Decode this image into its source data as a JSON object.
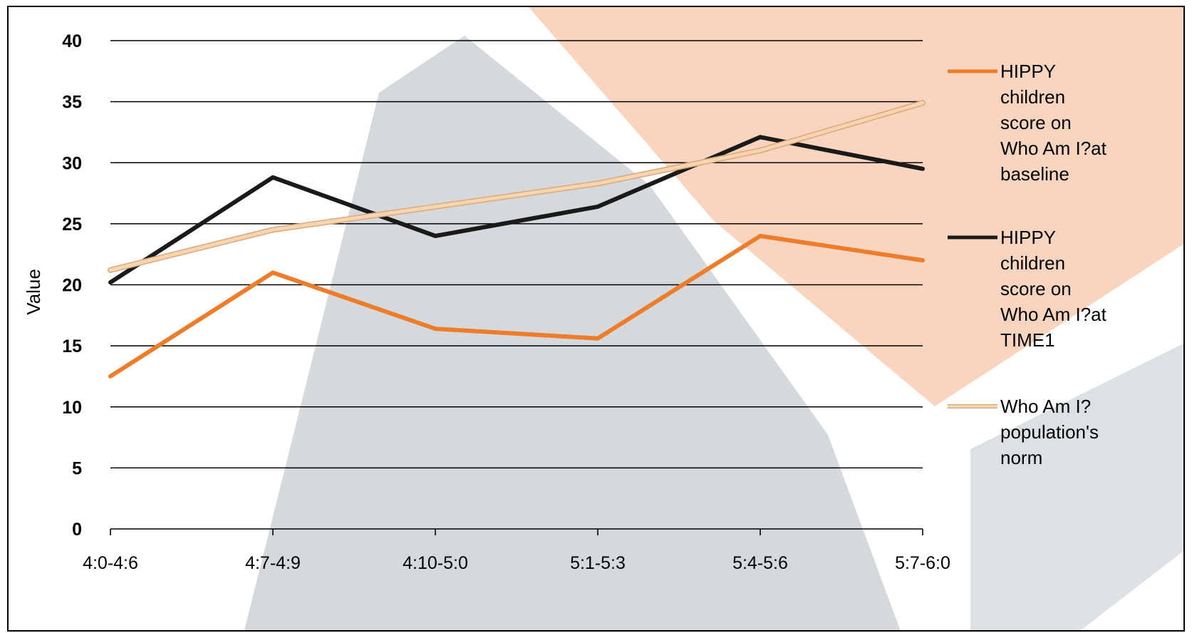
{
  "chart_data": {
    "type": "line",
    "title": "",
    "xlabel": "",
    "ylabel": "Value",
    "ylim": [
      0,
      40
    ],
    "yticks": [
      "0",
      "5",
      "10",
      "15",
      "20",
      "25",
      "30",
      "35",
      "40"
    ],
    "categories": [
      "4:0-4:6",
      "4:7-4:9",
      "4:10-5:0",
      "5:1-5:3",
      "5:4-5:6",
      "5:7-6:0"
    ],
    "grid": true,
    "legend_position": "right",
    "series": [
      {
        "name": "HIPPY children score on Who Am I?at baseline",
        "legend_lines": [
          "HIPPY",
          "children",
          "score on",
          "Who Am I?at",
          "baseline"
        ],
        "values": [
          12.5,
          21,
          16.4,
          15.6,
          24,
          22
        ],
        "color": "#ee7d2b"
      },
      {
        "name": "HIPPY children score on Who Am I?at TIME1",
        "legend_lines": [
          "HIPPY",
          "children",
          "score on",
          "Who Am I?at",
          "TIME1"
        ],
        "values": [
          20.2,
          28.8,
          24,
          26.4,
          32.1,
          29.5
        ],
        "color": "#1a1a1a"
      },
      {
        "name": "Who Am I? population's norm",
        "legend_lines": [
          "Who Am I?",
          "population's",
          "norm"
        ],
        "values": [
          21.2,
          24.5,
          26.4,
          28.3,
          31,
          34.9
        ],
        "color": "#f6d5b0"
      }
    ]
  },
  "background": {
    "peach": "#f9d5bf",
    "grey": "#d6d9dc"
  }
}
